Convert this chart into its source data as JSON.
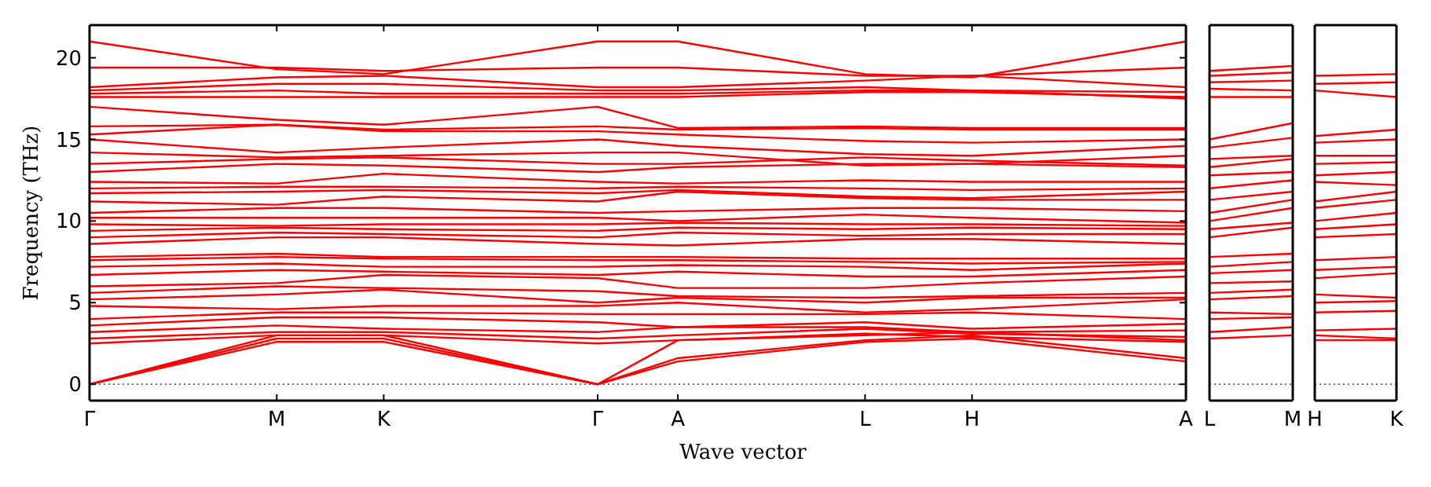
{
  "chart_data": [
    {
      "type": "line",
      "xlabel": "Wave vector",
      "ylabel": "Frequency (THz)",
      "color": "#ff0000",
      "line_style": "solid",
      "marker": "none",
      "categories": [
        "Γ",
        null,
        null,
        null,
        null,
        null,
        null,
        "M",
        null,
        null,
        null,
        "K",
        null,
        null,
        null,
        null,
        null,
        null,
        null,
        "Γ",
        null,
        null,
        "A",
        null,
        null,
        null,
        null,
        null,
        null,
        "L",
        null,
        null,
        null,
        "H",
        null,
        null,
        null,
        null,
        null,
        null,
        null,
        "A"
      ],
      "ylim": [
        -1,
        22
      ],
      "yticks": [
        0,
        5,
        10,
        15,
        20
      ],
      "ref_lines": [
        {
          "axis": "y",
          "value": 0,
          "color": "#0000ff",
          "line_style": "dotted"
        }
      ],
      "series": [
        {
          "values": [
            21,
            null,
            null,
            null,
            null,
            null,
            null,
            19.3,
            null,
            null,
            null,
            19.0,
            null,
            null,
            null,
            null,
            null,
            null,
            null,
            21,
            null,
            null,
            21,
            null,
            null,
            null,
            null,
            null,
            null,
            19.0,
            null,
            null,
            null,
            18.8,
            null,
            null,
            null,
            null,
            null,
            null,
            null,
            21
          ]
        },
        {
          "values": [
            19.4,
            null,
            null,
            null,
            null,
            null,
            null,
            19.4,
            null,
            null,
            null,
            19.2,
            null,
            null,
            null,
            null,
            null,
            null,
            null,
            19.4,
            null,
            null,
            19.4,
            null,
            null,
            null,
            null,
            null,
            null,
            18.9,
            null,
            null,
            null,
            18.9,
            null,
            null,
            null,
            null,
            null,
            null,
            null,
            19.4
          ]
        },
        {
          "values": [
            18.2,
            null,
            null,
            null,
            null,
            null,
            null,
            18.8,
            null,
            null,
            null,
            18.9,
            null,
            null,
            null,
            null,
            null,
            null,
            null,
            18.2,
            null,
            null,
            18.2,
            null,
            null,
            null,
            null,
            null,
            null,
            18.6,
            null,
            null,
            null,
            18.9,
            null,
            null,
            null,
            null,
            null,
            null,
            null,
            18.2
          ]
        },
        {
          "values": [
            18.0,
            null,
            null,
            null,
            null,
            null,
            null,
            18.4,
            null,
            null,
            null,
            18.4,
            null,
            null,
            null,
            null,
            null,
            null,
            null,
            18.0,
            null,
            null,
            18.0,
            null,
            null,
            null,
            null,
            null,
            null,
            18.2,
            null,
            null,
            null,
            18.0,
            null,
            null,
            null,
            null,
            null,
            null,
            null,
            17.9
          ]
        },
        {
          "values": [
            17.8,
            null,
            null,
            null,
            null,
            null,
            null,
            18.0,
            null,
            null,
            null,
            17.8,
            null,
            null,
            null,
            null,
            null,
            null,
            null,
            17.8,
            null,
            null,
            17.8,
            null,
            null,
            null,
            null,
            null,
            null,
            18.0,
            null,
            null,
            null,
            18.0,
            null,
            null,
            null,
            null,
            null,
            null,
            null,
            17.5
          ]
        },
        {
          "values": [
            17.6,
            null,
            null,
            null,
            null,
            null,
            null,
            17.6,
            null,
            null,
            null,
            17.6,
            null,
            null,
            null,
            null,
            null,
            null,
            null,
            17.6,
            null,
            null,
            17.6,
            null,
            null,
            null,
            null,
            null,
            null,
            17.9,
            null,
            null,
            null,
            17.9,
            null,
            null,
            null,
            null,
            null,
            null,
            null,
            17.6
          ]
        },
        {
          "values": [
            17.0,
            null,
            null,
            null,
            null,
            null,
            null,
            16.2,
            null,
            null,
            null,
            15.9,
            null,
            null,
            null,
            null,
            null,
            null,
            null,
            17.0,
            null,
            null,
            15.7,
            null,
            null,
            null,
            null,
            null,
            null,
            15.8,
            null,
            null,
            null,
            15.7,
            null,
            null,
            null,
            null,
            null,
            null,
            null,
            15.7
          ]
        },
        {
          "values": [
            15.8,
            null,
            null,
            null,
            null,
            null,
            null,
            15.9,
            null,
            null,
            null,
            15.6,
            null,
            null,
            null,
            null,
            null,
            null,
            null,
            15.8,
            null,
            null,
            15.6,
            null,
            null,
            null,
            null,
            null,
            null,
            15.7,
            null,
            null,
            null,
            15.6,
            null,
            null,
            null,
            null,
            null,
            null,
            null,
            15.6
          ]
        },
        {
          "values": [
            15.3,
            null,
            null,
            null,
            null,
            null,
            null,
            15.9,
            null,
            null,
            null,
            15.5,
            null,
            null,
            null,
            null,
            null,
            null,
            null,
            15.5,
            null,
            null,
            15.3,
            null,
            null,
            null,
            null,
            null,
            null,
            14.9,
            null,
            null,
            null,
            14.8,
            null,
            null,
            null,
            null,
            null,
            null,
            null,
            15.0
          ]
        },
        {
          "values": [
            15.0,
            null,
            null,
            null,
            null,
            null,
            null,
            14.2,
            null,
            null,
            null,
            14.5,
            null,
            null,
            null,
            null,
            null,
            null,
            null,
            15.0,
            null,
            null,
            14.6,
            null,
            null,
            null,
            null,
            null,
            null,
            14.1,
            null,
            null,
            null,
            14.0,
            null,
            null,
            null,
            null,
            null,
            null,
            null,
            14.6
          ]
        },
        {
          "values": [
            14.2,
            null,
            null,
            null,
            null,
            null,
            null,
            13.9,
            null,
            null,
            null,
            14.0,
            null,
            null,
            null,
            null,
            null,
            null,
            null,
            14.2,
            null,
            null,
            14.2,
            null,
            null,
            null,
            null,
            null,
            null,
            13.4,
            null,
            null,
            null,
            13.5,
            null,
            null,
            null,
            null,
            null,
            null,
            null,
            14.0
          ]
        },
        {
          "values": [
            13.5,
            null,
            null,
            null,
            null,
            null,
            null,
            13.8,
            null,
            null,
            null,
            13.9,
            null,
            null,
            null,
            null,
            null,
            null,
            null,
            13.5,
            null,
            null,
            13.5,
            null,
            null,
            null,
            null,
            null,
            null,
            13.9,
            null,
            null,
            null,
            13.7,
            null,
            null,
            null,
            null,
            null,
            null,
            null,
            13.4
          ]
        },
        {
          "values": [
            13.0,
            null,
            null,
            null,
            null,
            null,
            null,
            13.5,
            null,
            null,
            null,
            13.4,
            null,
            null,
            null,
            null,
            null,
            null,
            null,
            13.0,
            null,
            null,
            13.3,
            null,
            null,
            null,
            null,
            null,
            null,
            13.5,
            null,
            null,
            null,
            13.5,
            null,
            null,
            null,
            null,
            null,
            null,
            null,
            13.3
          ]
        },
        {
          "values": [
            12.4,
            null,
            null,
            null,
            null,
            null,
            null,
            12.3,
            null,
            null,
            null,
            12.9,
            null,
            null,
            null,
            null,
            null,
            null,
            null,
            12.4,
            null,
            null,
            12.3,
            null,
            null,
            null,
            null,
            null,
            null,
            12.5,
            null,
            null,
            null,
            12.4,
            null,
            null,
            null,
            null,
            null,
            null,
            null,
            12.4
          ]
        },
        {
          "values": [
            12.0,
            null,
            null,
            null,
            null,
            null,
            null,
            12.1,
            null,
            null,
            null,
            12.1,
            null,
            null,
            null,
            null,
            null,
            null,
            null,
            12.0,
            null,
            null,
            12.1,
            null,
            null,
            null,
            null,
            null,
            null,
            12.0,
            null,
            null,
            null,
            11.9,
            null,
            null,
            null,
            null,
            null,
            null,
            null,
            12.0
          ]
        },
        {
          "values": [
            11.7,
            null,
            null,
            null,
            null,
            null,
            null,
            11.8,
            null,
            null,
            null,
            11.9,
            null,
            null,
            null,
            null,
            null,
            null,
            null,
            11.7,
            null,
            null,
            11.9,
            null,
            null,
            null,
            null,
            null,
            null,
            11.5,
            null,
            null,
            null,
            11.4,
            null,
            null,
            null,
            null,
            null,
            null,
            null,
            11.8
          ]
        },
        {
          "values": [
            11.2,
            null,
            null,
            null,
            null,
            null,
            null,
            11.0,
            null,
            null,
            null,
            11.5,
            null,
            null,
            null,
            null,
            null,
            null,
            null,
            11.2,
            null,
            null,
            11.8,
            null,
            null,
            null,
            null,
            null,
            null,
            11.4,
            null,
            null,
            null,
            11.3,
            null,
            null,
            null,
            null,
            null,
            null,
            null,
            11.3
          ]
        },
        {
          "values": [
            10.5,
            null,
            null,
            null,
            null,
            null,
            null,
            10.8,
            null,
            null,
            null,
            10.8,
            null,
            null,
            null,
            null,
            null,
            null,
            null,
            10.5,
            null,
            null,
            10.6,
            null,
            null,
            null,
            null,
            null,
            null,
            10.8,
            null,
            null,
            null,
            10.8,
            null,
            null,
            null,
            null,
            null,
            null,
            null,
            10.6
          ]
        },
        {
          "values": [
            10.2,
            null,
            null,
            null,
            null,
            null,
            null,
            10.2,
            null,
            null,
            null,
            10.2,
            null,
            null,
            null,
            null,
            null,
            null,
            null,
            10.2,
            null,
            null,
            10.0,
            null,
            null,
            null,
            null,
            null,
            null,
            10.4,
            null,
            null,
            null,
            10.2,
            null,
            null,
            null,
            null,
            null,
            null,
            null,
            9.9
          ]
        },
        {
          "values": [
            9.8,
            null,
            null,
            null,
            null,
            null,
            null,
            9.7,
            null,
            null,
            null,
            9.8,
            null,
            null,
            null,
            null,
            null,
            null,
            null,
            9.8,
            null,
            null,
            9.9,
            null,
            null,
            null,
            null,
            null,
            null,
            9.8,
            null,
            null,
            null,
            9.8,
            null,
            null,
            null,
            null,
            null,
            null,
            null,
            9.7
          ]
        },
        {
          "values": [
            9.4,
            null,
            null,
            null,
            null,
            null,
            null,
            9.6,
            null,
            null,
            null,
            9.5,
            null,
            null,
            null,
            null,
            null,
            null,
            null,
            9.4,
            null,
            null,
            9.6,
            null,
            null,
            null,
            null,
            null,
            null,
            9.5,
            null,
            null,
            null,
            9.6,
            null,
            null,
            null,
            null,
            null,
            null,
            null,
            9.5
          ]
        },
        {
          "values": [
            9.0,
            null,
            null,
            null,
            null,
            null,
            null,
            9.3,
            null,
            null,
            null,
            9.2,
            null,
            null,
            null,
            null,
            null,
            null,
            null,
            9.0,
            null,
            null,
            9.3,
            null,
            null,
            null,
            null,
            null,
            null,
            9.1,
            null,
            null,
            null,
            9.2,
            null,
            null,
            null,
            null,
            null,
            null,
            null,
            9.2
          ]
        },
        {
          "values": [
            8.6,
            null,
            null,
            null,
            null,
            null,
            null,
            9.0,
            null,
            null,
            null,
            9.0,
            null,
            null,
            null,
            null,
            null,
            null,
            null,
            8.6,
            null,
            null,
            8.5,
            null,
            null,
            null,
            null,
            null,
            null,
            8.9,
            null,
            null,
            null,
            8.9,
            null,
            null,
            null,
            null,
            null,
            null,
            null,
            8.6
          ]
        },
        {
          "values": [
            7.8,
            null,
            null,
            null,
            null,
            null,
            null,
            8.0,
            null,
            null,
            null,
            7.8,
            null,
            null,
            null,
            null,
            null,
            null,
            null,
            7.8,
            null,
            null,
            7.8,
            null,
            null,
            null,
            null,
            null,
            null,
            7.7,
            null,
            null,
            null,
            7.7,
            null,
            null,
            null,
            null,
            null,
            null,
            null,
            7.7
          ]
        },
        {
          "values": [
            7.6,
            null,
            null,
            null,
            null,
            null,
            null,
            7.8,
            null,
            null,
            null,
            7.7,
            null,
            null,
            null,
            null,
            null,
            null,
            null,
            7.6,
            null,
            null,
            7.6,
            null,
            null,
            null,
            null,
            null,
            null,
            7.5,
            null,
            null,
            null,
            7.4,
            null,
            null,
            null,
            null,
            null,
            null,
            null,
            7.5
          ]
        },
        {
          "values": [
            7.2,
            null,
            null,
            null,
            null,
            null,
            null,
            7.4,
            null,
            null,
            null,
            7.2,
            null,
            null,
            null,
            null,
            null,
            null,
            null,
            7.2,
            null,
            null,
            7.3,
            null,
            null,
            null,
            null,
            null,
            null,
            7.2,
            null,
            null,
            null,
            7.0,
            null,
            null,
            null,
            null,
            null,
            null,
            null,
            7.4
          ]
        },
        {
          "values": [
            6.7,
            null,
            null,
            null,
            null,
            null,
            null,
            7.0,
            null,
            null,
            null,
            6.9,
            null,
            null,
            null,
            null,
            null,
            null,
            null,
            6.7,
            null,
            null,
            6.9,
            null,
            null,
            null,
            null,
            null,
            null,
            6.6,
            null,
            null,
            null,
            6.6,
            null,
            null,
            null,
            null,
            null,
            null,
            null,
            7.0
          ]
        },
        {
          "values": [
            6.0,
            null,
            null,
            null,
            null,
            null,
            null,
            6.2,
            null,
            null,
            null,
            6.7,
            null,
            null,
            null,
            null,
            null,
            null,
            null,
            6.5,
            null,
            null,
            5.9,
            null,
            null,
            null,
            null,
            null,
            null,
            5.9,
            null,
            null,
            null,
            6.2,
            null,
            null,
            null,
            null,
            null,
            null,
            null,
            6.6
          ]
        },
        {
          "values": [
            5.6,
            null,
            null,
            null,
            null,
            null,
            null,
            6.0,
            null,
            null,
            null,
            5.9,
            null,
            null,
            null,
            null,
            null,
            null,
            null,
            5.7,
            null,
            null,
            5.4,
            null,
            null,
            null,
            null,
            null,
            null,
            5.3,
            null,
            null,
            null,
            5.4,
            null,
            null,
            null,
            null,
            null,
            null,
            null,
            5.6
          ]
        },
        {
          "values": [
            5.2,
            null,
            null,
            null,
            null,
            null,
            null,
            5.5,
            null,
            null,
            null,
            5.8,
            null,
            null,
            null,
            null,
            null,
            null,
            null,
            5.0,
            null,
            null,
            5.3,
            null,
            null,
            null,
            null,
            null,
            null,
            5.0,
            null,
            null,
            null,
            5.3,
            null,
            null,
            null,
            null,
            null,
            null,
            null,
            5.3
          ]
        },
        {
          "values": [
            4.8,
            null,
            null,
            null,
            null,
            null,
            null,
            4.6,
            null,
            null,
            null,
            4.8,
            null,
            null,
            null,
            null,
            null,
            null,
            null,
            4.8,
            null,
            null,
            5.0,
            null,
            null,
            null,
            null,
            null,
            null,
            4.4,
            null,
            null,
            null,
            4.6,
            null,
            null,
            null,
            null,
            null,
            null,
            null,
            5.2
          ]
        },
        {
          "values": [
            4.0,
            null,
            null,
            null,
            null,
            null,
            null,
            4.4,
            null,
            null,
            null,
            4.4,
            null,
            null,
            null,
            null,
            null,
            null,
            null,
            4.3,
            null,
            null,
            4.3,
            null,
            null,
            null,
            null,
            null,
            null,
            4.3,
            null,
            null,
            null,
            4.4,
            null,
            null,
            null,
            null,
            null,
            null,
            null,
            4.0
          ]
        },
        {
          "values": [
            3.6,
            null,
            null,
            null,
            null,
            null,
            null,
            4.1,
            null,
            null,
            null,
            4.1,
            null,
            null,
            null,
            null,
            null,
            null,
            null,
            3.8,
            null,
            null,
            3.5,
            null,
            null,
            null,
            null,
            null,
            null,
            3.8,
            null,
            null,
            null,
            3.4,
            null,
            null,
            null,
            null,
            null,
            null,
            null,
            3.7
          ]
        },
        {
          "values": [
            3.2,
            null,
            null,
            null,
            null,
            null,
            null,
            3.6,
            null,
            null,
            null,
            3.4,
            null,
            null,
            null,
            null,
            null,
            null,
            null,
            3.2,
            null,
            null,
            3.5,
            null,
            null,
            null,
            null,
            null,
            null,
            3.5,
            null,
            null,
            null,
            3.2,
            null,
            null,
            null,
            null,
            null,
            null,
            null,
            3.3
          ]
        },
        {
          "values": [
            2.8,
            null,
            null,
            null,
            null,
            null,
            null,
            3.2,
            null,
            null,
            null,
            3.2,
            null,
            null,
            null,
            null,
            null,
            null,
            null,
            2.8,
            null,
            null,
            3.0,
            null,
            null,
            null,
            null,
            null,
            null,
            3.4,
            null,
            null,
            null,
            3.1,
            null,
            null,
            null,
            null,
            null,
            null,
            null,
            2.9
          ]
        },
        {
          "values": [
            2.5,
            null,
            null,
            null,
            null,
            null,
            null,
            3.0,
            null,
            null,
            null,
            3.0,
            null,
            null,
            null,
            null,
            null,
            null,
            null,
            2.5,
            null,
            null,
            2.7,
            null,
            null,
            null,
            null,
            null,
            null,
            3.1,
            null,
            null,
            null,
            2.9,
            null,
            null,
            null,
            null,
            null,
            null,
            null,
            2.6
          ]
        },
        {
          "values": [
            0,
            null,
            null,
            null,
            null,
            null,
            null,
            3.0,
            null,
            null,
            null,
            3.0,
            null,
            null,
            null,
            null,
            null,
            null,
            null,
            0,
            null,
            null,
            2.7,
            null,
            null,
            null,
            null,
            null,
            null,
            3.0,
            null,
            null,
            null,
            3.2,
            null,
            null,
            null,
            null,
            null,
            null,
            null,
            2.7
          ]
        },
        {
          "values": [
            0,
            null,
            null,
            null,
            null,
            null,
            null,
            2.8,
            null,
            null,
            null,
            2.8,
            null,
            null,
            null,
            null,
            null,
            null,
            null,
            0,
            null,
            null,
            1.6,
            null,
            null,
            null,
            null,
            null,
            null,
            2.7,
            null,
            null,
            null,
            3.0,
            null,
            null,
            null,
            null,
            null,
            null,
            null,
            1.6
          ]
        },
        {
          "values": [
            0,
            null,
            null,
            null,
            null,
            null,
            null,
            2.6,
            null,
            null,
            null,
            2.6,
            null,
            null,
            null,
            null,
            null,
            null,
            null,
            0,
            null,
            null,
            1.4,
            null,
            null,
            null,
            null,
            null,
            null,
            2.6,
            null,
            null,
            null,
            2.8,
            null,
            null,
            null,
            null,
            null,
            null,
            null,
            1.4
          ]
        }
      ]
    },
    {
      "type": "line",
      "color": "#ff0000",
      "line_style": "solid",
      "marker": "none",
      "tick_labels": "x",
      "categories": [
        "L",
        "M"
      ],
      "ylim": [
        -1,
        22
      ],
      "ref_lines": [
        {
          "axis": "y",
          "value": 0,
          "color": "#0000ff",
          "line_style": "dotted"
        }
      ],
      "series": [
        {
          "values": [
            19.2,
            19.5
          ]
        },
        {
          "values": [
            18.9,
            19.1
          ]
        },
        {
          "values": [
            18.5,
            18.6
          ]
        },
        {
          "values": [
            18.1,
            18.0
          ]
        },
        {
          "values": [
            17.6,
            17.6
          ]
        },
        {
          "values": [
            15.0,
            16.0
          ]
        },
        {
          "values": [
            14.5,
            15.1
          ]
        },
        {
          "values": [
            13.8,
            14.0
          ]
        },
        {
          "values": [
            13.3,
            13.8
          ]
        },
        {
          "values": [
            12.8,
            13.0
          ]
        },
        {
          "values": [
            12.0,
            12.5
          ]
        },
        {
          "values": [
            11.3,
            11.8
          ]
        },
        {
          "values": [
            10.5,
            11.3
          ]
        },
        {
          "values": [
            10.0,
            10.8
          ]
        },
        {
          "values": [
            9.5,
            9.9
          ]
        },
        {
          "values": [
            9.0,
            9.6
          ]
        },
        {
          "values": [
            7.8,
            8.0
          ]
        },
        {
          "values": [
            7.2,
            7.5
          ]
        },
        {
          "values": [
            6.8,
            7.0
          ]
        },
        {
          "values": [
            6.2,
            6.3
          ]
        },
        {
          "values": [
            5.6,
            5.8
          ]
        },
        {
          "values": [
            5.2,
            5.4
          ]
        },
        {
          "values": [
            4.4,
            4.3
          ]
        },
        {
          "values": [
            4.0,
            4.1
          ]
        },
        {
          "values": [
            3.2,
            3.5
          ]
        },
        {
          "values": [
            2.8,
            3.0
          ]
        }
      ]
    },
    {
      "type": "line",
      "color": "#ff0000",
      "line_style": "solid",
      "marker": "none",
      "tick_labels": "x",
      "categories": [
        "H",
        "K"
      ],
      "ylim": [
        -1,
        22
      ],
      "ref_lines": [
        {
          "axis": "y",
          "value": 0,
          "color": "#0000ff",
          "line_style": "dotted"
        }
      ],
      "series": [
        {
          "values": [
            18.9,
            19.0
          ]
        },
        {
          "values": [
            18.4,
            18.5
          ]
        },
        {
          "values": [
            18.0,
            17.6
          ]
        },
        {
          "values": [
            15.2,
            15.6
          ]
        },
        {
          "values": [
            14.8,
            15.0
          ]
        },
        {
          "values": [
            14.0,
            14.0
          ]
        },
        {
          "values": [
            13.5,
            13.6
          ]
        },
        {
          "values": [
            12.8,
            13.0
          ]
        },
        {
          "values": [
            12.4,
            12.2
          ]
        },
        {
          "values": [
            11.2,
            11.8
          ]
        },
        {
          "values": [
            10.8,
            11.3
          ]
        },
        {
          "values": [
            10.0,
            10.5
          ]
        },
        {
          "values": [
            9.5,
            9.8
          ]
        },
        {
          "values": [
            9.0,
            9.2
          ]
        },
        {
          "values": [
            7.6,
            7.8
          ]
        },
        {
          "values": [
            7.0,
            7.2
          ]
        },
        {
          "values": [
            6.5,
            6.8
          ]
        },
        {
          "values": [
            5.5,
            5.3
          ]
        },
        {
          "values": [
            5.0,
            5.1
          ]
        },
        {
          "values": [
            4.4,
            4.5
          ]
        },
        {
          "values": [
            3.3,
            3.4
          ]
        },
        {
          "values": [
            3.0,
            2.8
          ]
        },
        {
          "values": [
            2.7,
            2.7
          ]
        }
      ]
    }
  ]
}
